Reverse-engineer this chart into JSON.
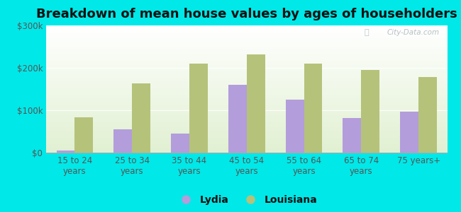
{
  "title": "Breakdown of mean house values by ages of householders",
  "categories": [
    "15 to 24\nyears",
    "25 to 34\nyears",
    "35 to 44\nyears",
    "45 to 54\nyears",
    "55 to 64\nyears",
    "65 to 74\nyears",
    "75 years+"
  ],
  "lydia_values": [
    5000,
    55000,
    45000,
    160000,
    125000,
    82000,
    97000
  ],
  "louisiana_values": [
    83000,
    163000,
    210000,
    232000,
    210000,
    195000,
    178000
  ],
  "lydia_color": "#b39ddb",
  "louisiana_color": "#b5c27a",
  "background_color": "#00e8e8",
  "ylim": [
    0,
    300000
  ],
  "yticks": [
    0,
    100000,
    200000,
    300000
  ],
  "ytick_labels": [
    "$0",
    "$100k",
    "$200k",
    "$300k"
  ],
  "watermark": "City-Data.com",
  "bar_width": 0.32,
  "title_fontsize": 13,
  "tick_fontsize": 8.5,
  "legend_fontsize": 10
}
